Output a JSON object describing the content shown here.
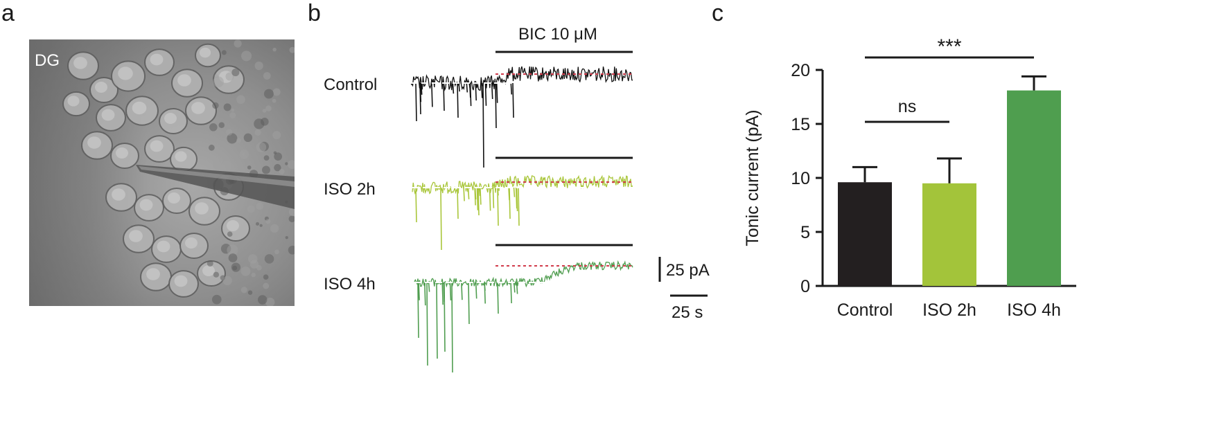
{
  "panels": {
    "a": {
      "letter": "a",
      "region_label": "DG"
    },
    "b": {
      "letter": "b",
      "drug_label": "BIC 10 μM",
      "traces": [
        {
          "label": "Control",
          "color": "#111111"
        },
        {
          "label": "ISO 2h",
          "color": "#a9c63a"
        },
        {
          "label": "ISO 4h",
          "color": "#4f9d4f"
        }
      ],
      "scale_bar": {
        "current_label": "25 pA",
        "time_label": "25 s"
      },
      "baseline_color": "#ffffff",
      "bic_level_color": "#d13b4b"
    },
    "c": {
      "letter": "c",
      "significance": [
        {
          "from": "Control",
          "to": "ISO 4h",
          "label": "***"
        },
        {
          "from": "Control",
          "to": "ISO 2h",
          "label": "ns"
        }
      ]
    }
  },
  "chart_data": {
    "type": "bar",
    "categories": [
      "Control",
      "ISO 2h",
      "ISO 4h"
    ],
    "values": [
      9.6,
      9.5,
      18.1
    ],
    "errors": [
      1.4,
      2.3,
      1.3
    ],
    "colors": [
      "#231f20",
      "#a3c43a",
      "#4f9e4f"
    ],
    "ylabel": "Tonic current (pA)",
    "ylim": [
      0,
      20
    ],
    "yticks": [
      0,
      5,
      10,
      15,
      20
    ],
    "grid": false
  }
}
